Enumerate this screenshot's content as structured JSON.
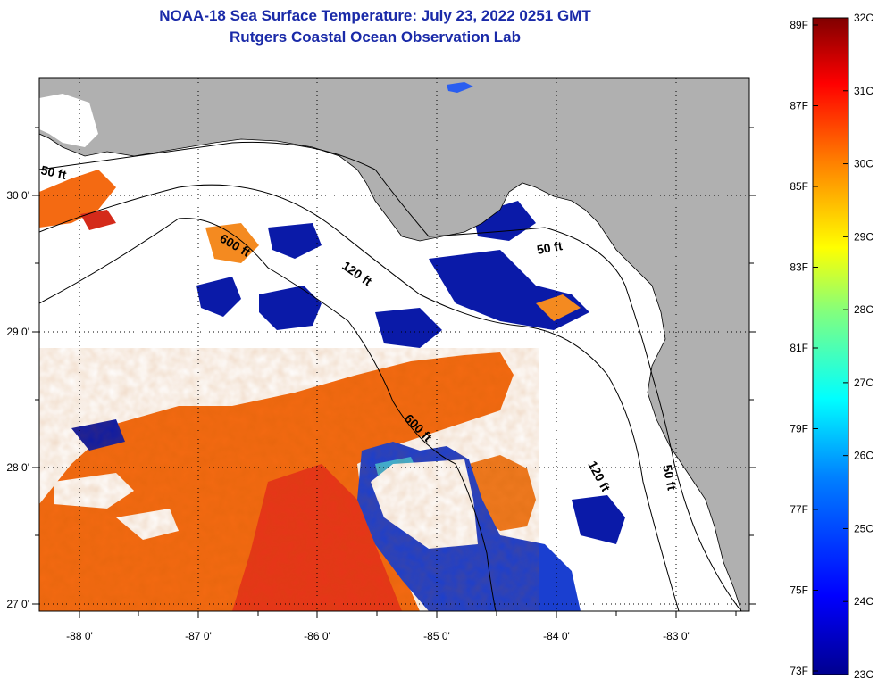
{
  "title_line1": "NOAA-18 Sea Surface Temperature:  July 23, 2022 0251 GMT",
  "title_line2": "Rutgers Coastal Ocean Observation Lab",
  "map": {
    "lon_labels": [
      "-88 0'",
      "-87 0'",
      "-86 0'",
      "-85 0'",
      "-84 0'",
      "-83 0'"
    ],
    "lat_labels": [
      "30 0'",
      "29 0'",
      "28 0'",
      "27 0'"
    ],
    "contour_labels": [
      "50 ft",
      "600 ft",
      "120 ft",
      "50 ft",
      "600 ft",
      "120 ft",
      "50 ft"
    ],
    "colors": {
      "land": "#b0b0b0",
      "cloud": "#ffffff",
      "frame": "#000000",
      "grid": "#000000"
    }
  },
  "colorbar": {
    "fahrenheit_labels": [
      "89F",
      "87F",
      "85F",
      "83F",
      "81F",
      "79F",
      "77F",
      "75F",
      "73F"
    ],
    "celsius_labels": [
      "32C",
      "31C",
      "30C",
      "29C",
      "28C",
      "27C",
      "26C",
      "25C",
      "24C",
      "23C"
    ],
    "colors": [
      "#00008f",
      "#0000ff",
      "#0080ff",
      "#00ffff",
      "#80ff80",
      "#ffff00",
      "#ff8000",
      "#ff0000",
      "#800000"
    ]
  }
}
